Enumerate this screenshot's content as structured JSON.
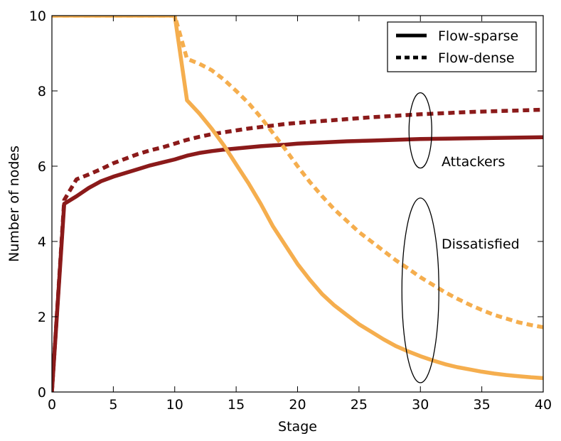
{
  "chart_data": {
    "type": "line",
    "xlabel": "Stage",
    "ylabel": "Number of nodes",
    "xlim": [
      0,
      40
    ],
    "ylim": [
      0,
      10
    ],
    "xticks": [
      "0",
      "5",
      "10",
      "15",
      "20",
      "25",
      "30",
      "35",
      "40"
    ],
    "yticks": [
      "0",
      "2",
      "4",
      "6",
      "8",
      "10"
    ],
    "grid": false,
    "legend": {
      "placement": "top-right",
      "entries": [
        {
          "label": "Flow-sparse",
          "style": "solid"
        },
        {
          "label": "Flow-dense",
          "style": "dashed"
        }
      ]
    },
    "annotations": [
      {
        "text": "Attackers",
        "group": "attackers"
      },
      {
        "text": "Dissatisfied",
        "group": "dissatisfied"
      }
    ],
    "colors": {
      "attackers": "#8b1a1a",
      "dissatisfied": "#f5ae4e"
    },
    "series": [
      {
        "group": "attackers",
        "style": "solid",
        "x": [
          0,
          1,
          2,
          3,
          4,
          5,
          6,
          7,
          8,
          9,
          10,
          11,
          12,
          13,
          14,
          15,
          16,
          17,
          18,
          19,
          20,
          22,
          24,
          26,
          28,
          30,
          32,
          34,
          36,
          38,
          40
        ],
        "y": [
          0,
          5.0,
          5.2,
          5.42,
          5.6,
          5.72,
          5.82,
          5.92,
          6.02,
          6.1,
          6.18,
          6.28,
          6.35,
          6.4,
          6.44,
          6.47,
          6.5,
          6.53,
          6.55,
          6.57,
          6.6,
          6.63,
          6.66,
          6.68,
          6.7,
          6.72,
          6.73,
          6.74,
          6.75,
          6.76,
          6.77
        ]
      },
      {
        "group": "attackers",
        "style": "dashed",
        "x": [
          0,
          1,
          2,
          3,
          4,
          5,
          6,
          7,
          8,
          9,
          10,
          11,
          12,
          13,
          14,
          15,
          16,
          17,
          18,
          19,
          20,
          22,
          24,
          26,
          28,
          30,
          32,
          34,
          36,
          38,
          40
        ],
        "y": [
          0,
          5.1,
          5.65,
          5.78,
          5.92,
          6.08,
          6.2,
          6.32,
          6.42,
          6.5,
          6.6,
          6.7,
          6.78,
          6.85,
          6.9,
          6.95,
          7.0,
          7.04,
          7.08,
          7.12,
          7.15,
          7.2,
          7.25,
          7.3,
          7.34,
          7.38,
          7.41,
          7.44,
          7.46,
          7.48,
          7.5
        ]
      },
      {
        "group": "dissatisfied",
        "style": "solid",
        "x": [
          0,
          10,
          11,
          12,
          13,
          14,
          15,
          16,
          17,
          18,
          19,
          20,
          21,
          22,
          23,
          24,
          25,
          26,
          27,
          28,
          29,
          30,
          31,
          32,
          33,
          34,
          35,
          36,
          37,
          38,
          39,
          40
        ],
        "y": [
          10,
          10,
          7.75,
          7.4,
          7.0,
          6.55,
          6.05,
          5.55,
          5.0,
          4.4,
          3.9,
          3.4,
          2.98,
          2.6,
          2.3,
          2.05,
          1.8,
          1.6,
          1.4,
          1.22,
          1.08,
          0.95,
          0.84,
          0.74,
          0.66,
          0.6,
          0.54,
          0.49,
          0.45,
          0.42,
          0.39,
          0.37
        ]
      },
      {
        "group": "dissatisfied",
        "style": "dashed",
        "x": [
          0,
          10,
          11,
          12,
          13,
          14,
          15,
          16,
          17,
          18,
          19,
          20,
          21,
          22,
          23,
          24,
          25,
          26,
          27,
          28,
          29,
          30,
          31,
          32,
          33,
          34,
          35,
          36,
          37,
          38,
          39,
          40
        ],
        "y": [
          10,
          10,
          8.85,
          8.72,
          8.55,
          8.3,
          8.0,
          7.68,
          7.3,
          6.88,
          6.45,
          6.0,
          5.58,
          5.2,
          4.85,
          4.55,
          4.25,
          4.0,
          3.75,
          3.5,
          3.28,
          3.05,
          2.85,
          2.65,
          2.48,
          2.32,
          2.18,
          2.05,
          1.95,
          1.85,
          1.78,
          1.72
        ]
      }
    ]
  }
}
